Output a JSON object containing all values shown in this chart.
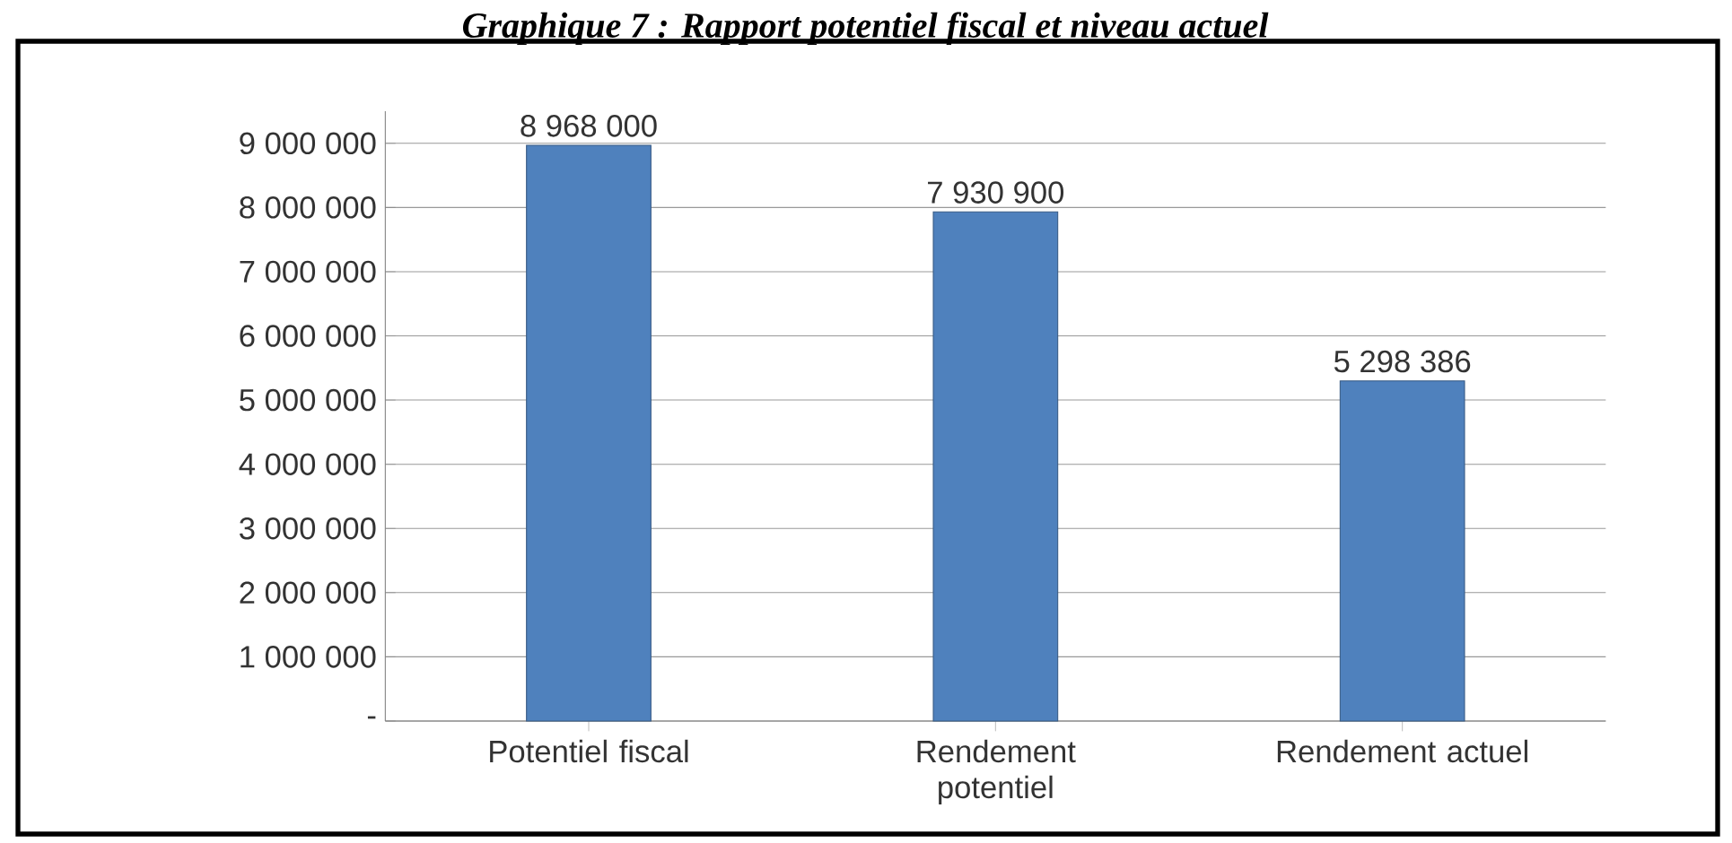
{
  "chart_data": {
    "type": "bar",
    "title": "Graphique 7 : Rapport potentiel fiscal et niveau actuel",
    "categories": [
      "Potentiel fiscal",
      "Rendement potentiel",
      "Rendement actuel"
    ],
    "values": [
      8968000,
      7930900,
      5298386
    ],
    "value_labels": [
      "8 968 000",
      "7 930 900",
      "5 298 386"
    ],
    "color": "#4f81bd",
    "ylim": [
      0,
      9500000
    ],
    "yticks": [
      {
        "value": 0,
        "label": "-"
      },
      {
        "value": 1000000,
        "label": "1 000 000"
      },
      {
        "value": 2000000,
        "label": "2 000 000"
      },
      {
        "value": 3000000,
        "label": "3 000 000"
      },
      {
        "value": 4000000,
        "label": "4 000 000"
      },
      {
        "value": 5000000,
        "label": "5 000 000"
      },
      {
        "value": 6000000,
        "label": "6 000 000"
      },
      {
        "value": 7000000,
        "label": "7 000 000"
      },
      {
        "value": 8000000,
        "label": "8 000 000"
      },
      {
        "value": 9000000,
        "label": "9 000 000"
      }
    ],
    "grid": "y"
  }
}
